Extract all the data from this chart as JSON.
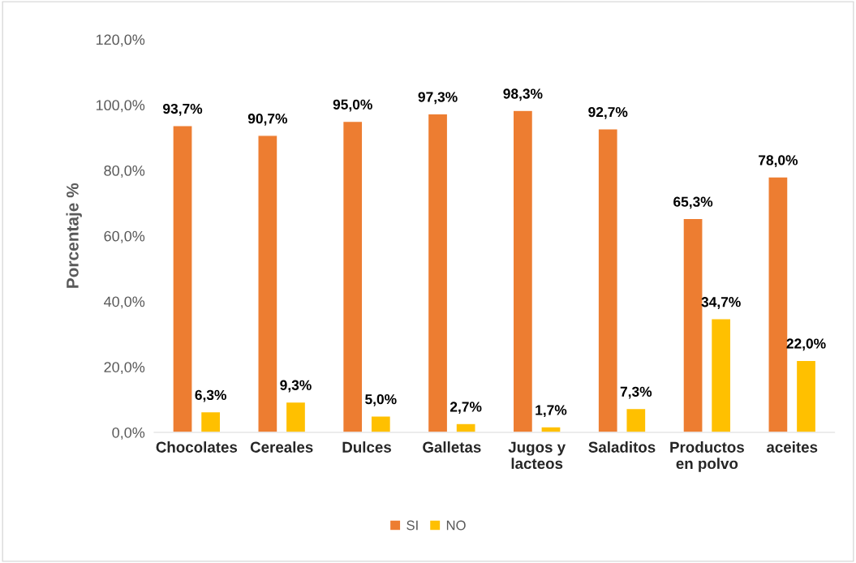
{
  "chart_data": {
    "type": "bar",
    "ylabel": "Porcentaje %",
    "categories": [
      "Chocolates",
      "Cereales",
      "Dulces",
      "Galletas",
      "Jugos y\nlacteos",
      "Saladitos",
      "Productos\nen polvo",
      "aceites"
    ],
    "series": [
      {
        "name": "SI",
        "color": "#ed7d31",
        "values": [
          93.7,
          90.7,
          95.0,
          97.3,
          98.3,
          92.7,
          65.3,
          78.0
        ],
        "value_labels": [
          "93,7%",
          "90,7%",
          "95,0%",
          "97,3%",
          "98,3%",
          "92,7%",
          "65,3%",
          "78,0%"
        ]
      },
      {
        "name": "NO",
        "color": "#ffc000",
        "values": [
          6.3,
          9.3,
          5.0,
          2.7,
          1.7,
          7.3,
          34.7,
          22.0
        ],
        "value_labels": [
          "6,3%",
          "9,3%",
          "5,0%",
          "2,7%",
          "1,7%",
          "7,3%",
          "34,7%",
          "22,0%"
        ]
      }
    ],
    "ylim": [
      0,
      120
    ],
    "yticks": [
      {
        "value": 0,
        "label": "0,0%"
      },
      {
        "value": 20,
        "label": "20,0%"
      },
      {
        "value": 40,
        "label": "40,0%"
      },
      {
        "value": 60,
        "label": "60,0%"
      },
      {
        "value": 80,
        "label": "80,0%"
      },
      {
        "value": 100,
        "label": "100,0%"
      },
      {
        "value": 120,
        "label": "120,0%"
      }
    ],
    "grid": false,
    "legend": "bottom"
  }
}
